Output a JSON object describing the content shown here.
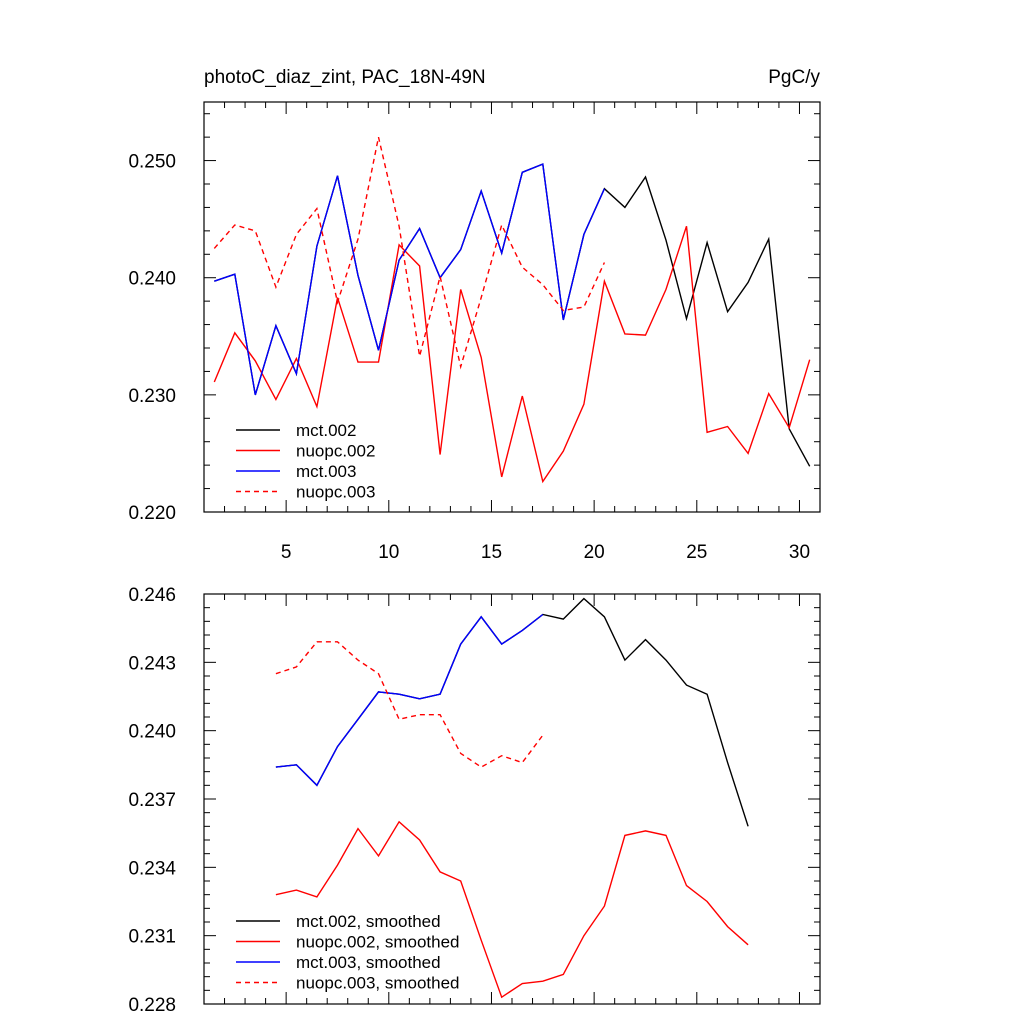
{
  "chart_data": [
    {
      "type": "line",
      "title_left": "photoC_diaz_zint, PAC_18N-49N",
      "title_right": "PgC/y",
      "xlim": [
        1,
        31
      ],
      "ylim": [
        0.22,
        0.255
      ],
      "x_ticks": [
        5,
        10,
        15,
        20,
        25,
        30
      ],
      "x_tick_labels": [
        "5",
        "10",
        "15",
        "20",
        "25",
        "30"
      ],
      "y_ticks": [
        0.22,
        0.23,
        0.24,
        0.25
      ],
      "y_tick_labels": [
        "0.220",
        "0.230",
        "0.240",
        "0.250"
      ],
      "series": [
        {
          "name": "mct.002",
          "color": "#000000",
          "dash": "solid",
          "x": [
            1.5,
            2.5,
            3.5,
            4.5,
            5.5,
            6.5,
            7.5,
            8.5,
            9.5,
            10.5,
            11.5,
            12.5,
            13.5,
            14.5,
            15.5,
            16.5,
            17.5,
            18.5,
            19.5,
            20.5,
            21.5,
            22.5,
            23.5,
            24.5,
            25.5,
            26.5,
            27.5,
            28.5,
            29.5,
            30.5
          ],
          "values": [
            0.2397,
            0.2403,
            0.23,
            0.2359,
            0.2318,
            0.2427,
            0.2487,
            0.2402,
            0.2338,
            0.2415,
            0.2442,
            0.24,
            0.2424,
            0.2474,
            0.2421,
            0.249,
            0.2497,
            0.2364,
            0.2437,
            0.2476,
            0.246,
            0.2486,
            0.2432,
            0.2365,
            0.243,
            0.2371,
            0.2396,
            0.2433,
            0.2271,
            0.2239
          ]
        },
        {
          "name": "nuopc.002",
          "color": "#ff0000",
          "dash": "solid",
          "x": [
            1.5,
            2.5,
            3.5,
            4.5,
            5.5,
            6.5,
            7.5,
            8.5,
            9.5,
            10.5,
            11.5,
            12.5,
            13.5,
            14.5,
            15.5,
            16.5,
            17.5,
            18.5,
            19.5,
            20.5,
            21.5,
            22.5,
            23.5,
            24.5,
            25.5,
            26.5,
            27.5,
            28.5,
            29.5,
            30.5
          ],
          "values": [
            0.2311,
            0.2353,
            0.2329,
            0.2296,
            0.2331,
            0.229,
            0.2383,
            0.2328,
            0.2328,
            0.2428,
            0.241,
            0.2249,
            0.239,
            0.2332,
            0.223,
            0.2299,
            0.2226,
            0.2252,
            0.2292,
            0.2397,
            0.2352,
            0.2351,
            0.239,
            0.2444,
            0.2268,
            0.2273,
            0.225,
            0.2301,
            0.2272,
            0.233
          ]
        },
        {
          "name": "mct.003",
          "color": "#0000ff",
          "dash": "solid",
          "x": [
            1.5,
            2.5,
            3.5,
            4.5,
            5.5,
            6.5,
            7.5,
            8.5,
            9.5,
            10.5,
            11.5,
            12.5,
            13.5,
            14.5,
            15.5,
            16.5,
            17.5,
            18.5,
            19.5,
            20.5
          ],
          "values": [
            0.2397,
            0.2403,
            0.23,
            0.2359,
            0.2318,
            0.2427,
            0.2487,
            0.2402,
            0.2338,
            0.2415,
            0.2442,
            0.24,
            0.2424,
            0.2474,
            0.2421,
            0.249,
            0.2497,
            0.2364,
            0.2437,
            0.2476
          ]
        },
        {
          "name": "nuopc.003",
          "color": "#ff0000",
          "dash": "dashed",
          "x": [
            1.5,
            2.5,
            3.5,
            4.5,
            5.5,
            6.5,
            7.5,
            8.5,
            9.5,
            10.5,
            11.5,
            12.5,
            13.5,
            14.5,
            15.5,
            16.5,
            17.5,
            18.5,
            19.5,
            20.5
          ],
          "values": [
            0.2425,
            0.2445,
            0.244,
            0.2392,
            0.2437,
            0.2459,
            0.2379,
            0.2433,
            0.252,
            0.2444,
            0.2333,
            0.2401,
            0.2324,
            0.2383,
            0.2445,
            0.2409,
            0.2394,
            0.2372,
            0.2375,
            0.2413
          ]
        }
      ]
    },
    {
      "type": "line",
      "xlim": [
        1,
        31
      ],
      "ylim": [
        0.228,
        0.246
      ],
      "x_ticks": [
        5,
        10,
        15,
        20,
        25,
        30
      ],
      "y_ticks": [
        0.228,
        0.231,
        0.234,
        0.237,
        0.24,
        0.243,
        0.246
      ],
      "y_tick_labels": [
        "0.228",
        "0.231",
        "0.234",
        "0.237",
        "0.240",
        "0.243",
        "0.246"
      ],
      "series": [
        {
          "name": "mct.002, smoothed",
          "color": "#000000",
          "dash": "solid",
          "x": [
            4.5,
            5.5,
            6.5,
            7.5,
            8.5,
            9.5,
            10.5,
            11.5,
            12.5,
            13.5,
            14.5,
            15.5,
            16.5,
            17.5,
            18.5,
            19.5,
            20.5,
            21.5,
            22.5,
            23.5,
            24.5,
            25.5,
            26.5,
            27.5
          ],
          "values": [
            0.2384,
            0.2385,
            0.2376,
            0.2393,
            0.2405,
            0.2417,
            0.2416,
            0.2414,
            0.2416,
            0.2438,
            0.245,
            0.2438,
            0.2444,
            0.2451,
            0.2449,
            0.2458,
            0.245,
            0.2431,
            0.244,
            0.2431,
            0.242,
            0.2416,
            0.2386,
            0.2358
          ]
        },
        {
          "name": "nuopc.002, smoothed",
          "color": "#ff0000",
          "dash": "solid",
          "x": [
            4.5,
            5.5,
            6.5,
            7.5,
            8.5,
            9.5,
            10.5,
            11.5,
            12.5,
            13.5,
            14.5,
            15.5,
            16.5,
            17.5,
            18.5,
            19.5,
            20.5,
            21.5,
            22.5,
            23.5,
            24.5,
            25.5,
            26.5,
            27.5
          ],
          "values": [
            0.2328,
            0.233,
            0.2327,
            0.2341,
            0.2357,
            0.2345,
            0.236,
            0.2352,
            0.2338,
            0.2334,
            0.2308,
            0.2283,
            0.2289,
            0.229,
            0.2293,
            0.231,
            0.2323,
            0.2354,
            0.2356,
            0.2354,
            0.2332,
            0.2325,
            0.2314,
            0.2306
          ]
        },
        {
          "name": "mct.003, smoothed",
          "color": "#0000ff",
          "dash": "solid",
          "x": [
            4.5,
            5.5,
            6.5,
            7.5,
            8.5,
            9.5,
            10.5,
            11.5,
            12.5,
            13.5,
            14.5,
            15.5,
            16.5,
            17.5
          ],
          "values": [
            0.2384,
            0.2385,
            0.2376,
            0.2393,
            0.2405,
            0.2417,
            0.2416,
            0.2414,
            0.2416,
            0.2438,
            0.245,
            0.2438,
            0.2444,
            0.2451
          ]
        },
        {
          "name": "nuopc.003, smoothed",
          "color": "#ff0000",
          "dash": "dashed",
          "x": [
            4.5,
            5.5,
            6.5,
            7.5,
            8.5,
            9.5,
            10.5,
            11.5,
            12.5,
            13.5,
            14.5,
            15.5,
            16.5,
            17.5
          ],
          "values": [
            0.2425,
            0.2428,
            0.2439,
            0.2439,
            0.2431,
            0.2425,
            0.2405,
            0.2407,
            0.2407,
            0.239,
            0.2384,
            0.2389,
            0.2386,
            0.2398
          ]
        }
      ]
    }
  ]
}
